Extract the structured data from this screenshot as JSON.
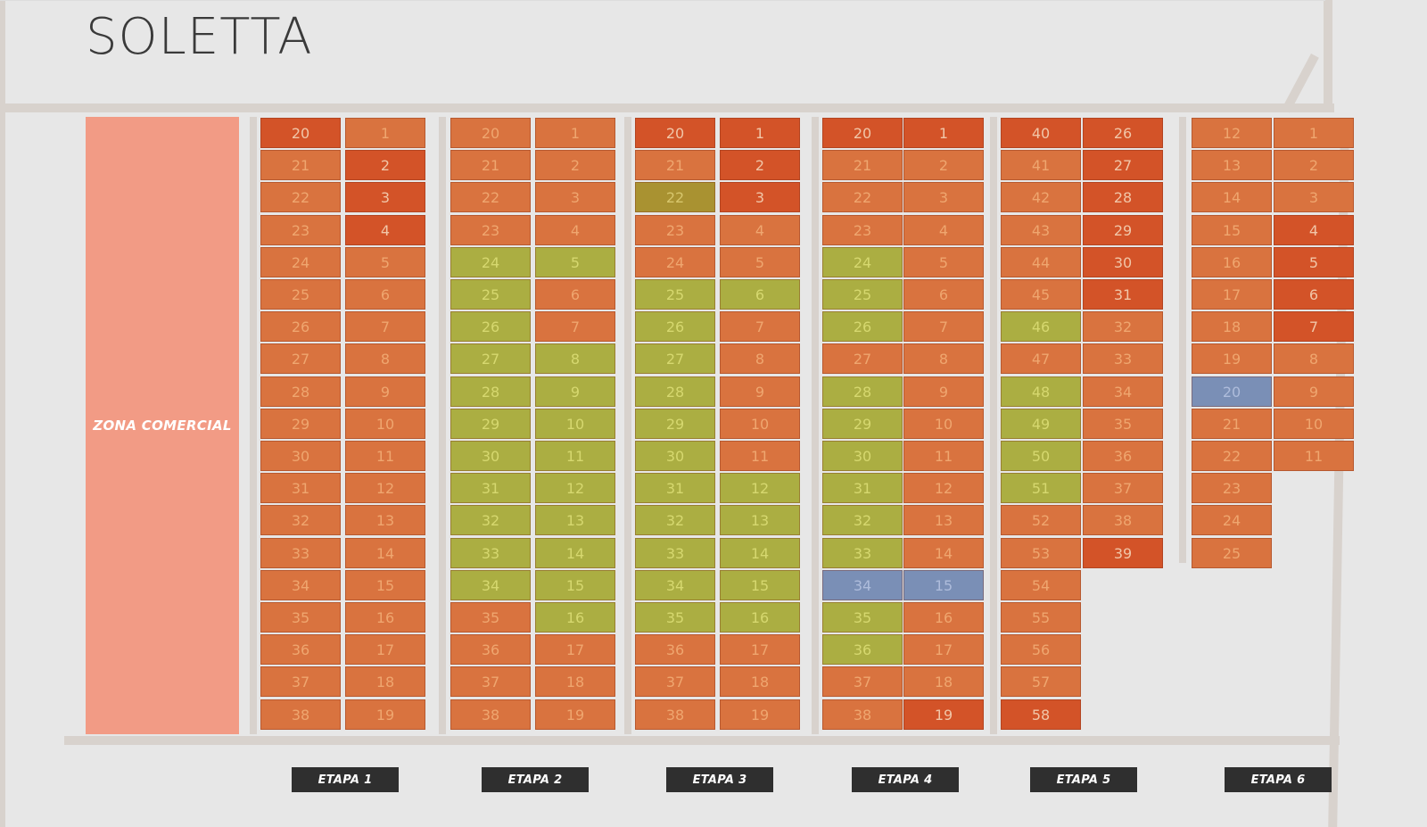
{
  "brand": "SOLETTA",
  "zona_comercial": "ZONA COMERCIAL",
  "colors": {
    "background": "#e7e7e7",
    "road": "#d8d2cd",
    "zona": "#f29b85",
    "disponible": "#d9733f",
    "vendido": "#d35328",
    "verde": "#abae42",
    "azul": "#7a8fb6",
    "ocre": "#a99231",
    "etapa_label_bg": "#2f2f2f"
  },
  "etapas": [
    {
      "label": "ETAPA 1",
      "columns": [
        {
          "start": 20,
          "end": 38,
          "status": {
            "20": "vendido"
          }
        },
        {
          "start": 1,
          "end": 19,
          "status": {
            "2": "vendido",
            "3": "vendido",
            "4": "vendido"
          }
        }
      ]
    },
    {
      "label": "ETAPA 2",
      "columns": [
        {
          "start": 20,
          "end": 38,
          "status": {
            "24": "verde",
            "25": "verde",
            "26": "verde",
            "27": "verde",
            "28": "verde",
            "29": "verde",
            "30": "verde",
            "31": "verde",
            "32": "verde",
            "33": "verde",
            "34": "verde"
          }
        },
        {
          "start": 1,
          "end": 19,
          "status": {
            "5": "verde",
            "8": "verde",
            "9": "verde",
            "10": "verde",
            "11": "verde",
            "12": "verde",
            "13": "verde",
            "14": "verde",
            "15": "verde",
            "16": "verde"
          }
        }
      ]
    },
    {
      "label": "ETAPA 3",
      "columns": [
        {
          "start": 20,
          "end": 38,
          "status": {
            "20": "vendido",
            "22": "ocre",
            "25": "verde",
            "26": "verde",
            "27": "verde",
            "28": "verde",
            "29": "verde",
            "30": "verde",
            "31": "verde",
            "32": "verde",
            "33": "verde",
            "34": "verde",
            "35": "verde"
          }
        },
        {
          "start": 1,
          "end": 19,
          "status": {
            "1": "vendido",
            "2": "vendido",
            "3": "vendido",
            "6": "verde",
            "12": "verde",
            "13": "verde",
            "14": "verde",
            "15": "verde",
            "16": "verde"
          }
        }
      ]
    },
    {
      "label": "ETAPA 4",
      "columns": [
        {
          "start": 20,
          "end": 38,
          "status": {
            "20": "vendido",
            "24": "verde",
            "25": "verde",
            "26": "verde",
            "28": "verde",
            "29": "verde",
            "30": "verde",
            "31": "verde",
            "32": "verde",
            "33": "verde",
            "34": "azul",
            "35": "verde",
            "36": "verde"
          }
        },
        {
          "start": 1,
          "end": 19,
          "status": {
            "1": "vendido",
            "15": "azul",
            "19": "vendido"
          }
        }
      ]
    },
    {
      "label": "ETAPA 5",
      "columns": [
        {
          "start": 40,
          "end": 58,
          "status": {
            "40": "vendido",
            "46": "verde",
            "48": "verde",
            "49": "verde",
            "50": "verde",
            "51": "verde",
            "58": "vendido"
          }
        },
        {
          "start": 26,
          "end": 39,
          "status": {
            "26": "vendido",
            "27": "vendido",
            "28": "vendido",
            "29": "vendido",
            "30": "vendido",
            "31": "vendido",
            "39": "vendido"
          }
        }
      ]
    },
    {
      "label": "ETAPA 6",
      "columns": [
        {
          "start": 12,
          "end": 25,
          "status": {
            "20": "azul"
          }
        },
        {
          "start": 1,
          "end": 11,
          "status": {
            "4": "vendido",
            "5": "vendido",
            "6": "vendido",
            "7": "vendido"
          }
        }
      ]
    }
  ]
}
